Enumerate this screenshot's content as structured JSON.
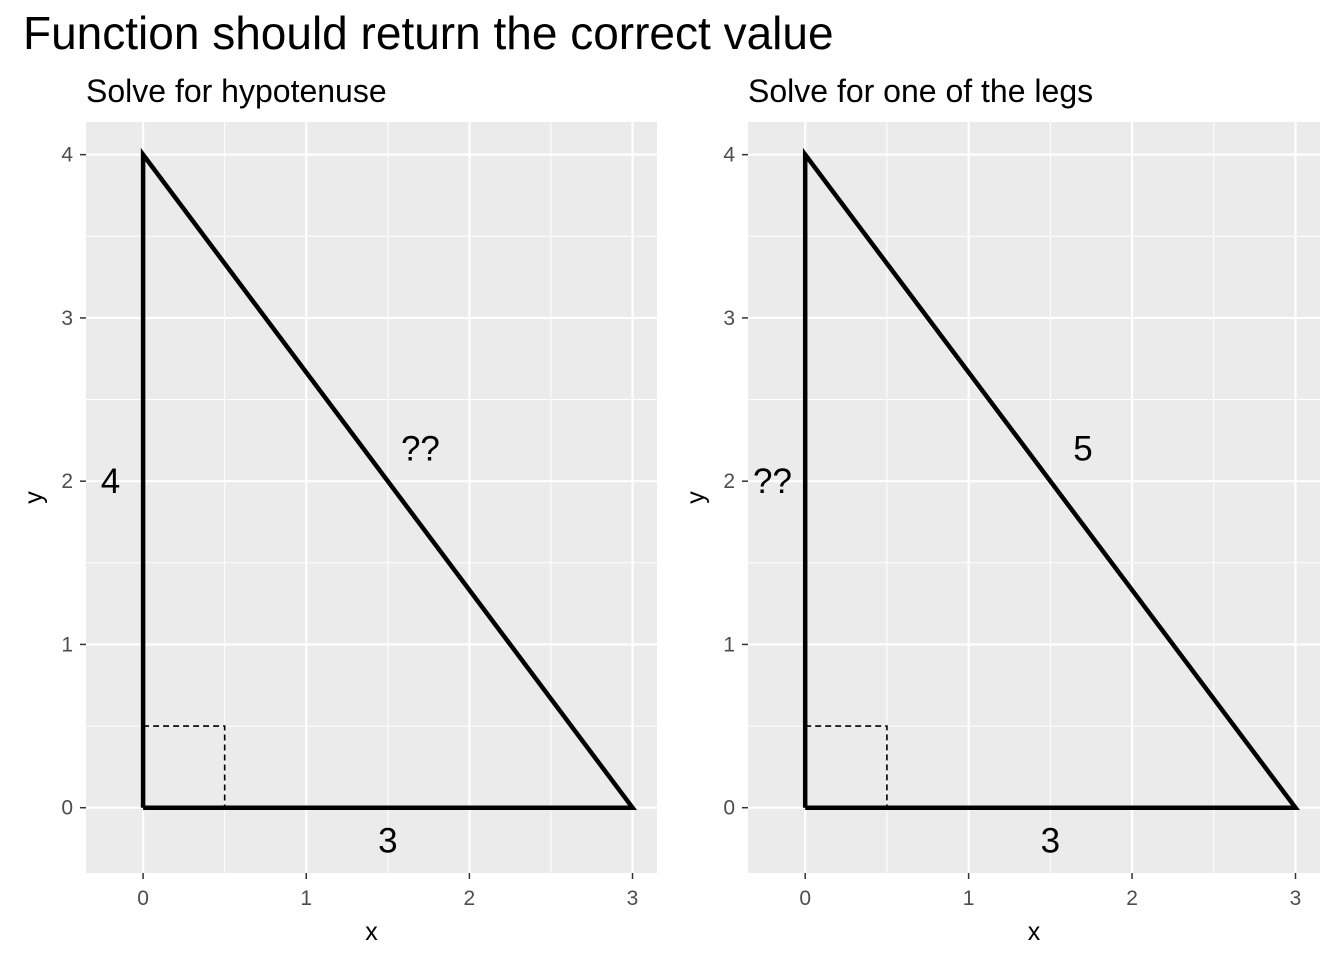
{
  "title": "Function should return the correct value",
  "chart_data": [
    {
      "type": "line",
      "subtitle": "Solve for hypotenuse",
      "xlabel": "x",
      "ylabel": "y",
      "xlim": [
        -0.35,
        3.15
      ],
      "ylim": [
        -0.4,
        4.2
      ],
      "x_ticks": [
        0,
        1,
        2,
        3
      ],
      "y_ticks": [
        0,
        1,
        2,
        3,
        4
      ],
      "grid": true,
      "triangle": [
        [
          0,
          0
        ],
        [
          3,
          0
        ],
        [
          0,
          4
        ],
        [
          0,
          0
        ]
      ],
      "right_angle_marker": [
        [
          0,
          0.5
        ],
        [
          0.5,
          0.5
        ],
        [
          0.5,
          0
        ]
      ],
      "side_labels": [
        {
          "text": "3",
          "x": 1.5,
          "y": -0.2
        },
        {
          "text": "4",
          "x": -0.2,
          "y": 2
        },
        {
          "text": "??",
          "x": 1.7,
          "y": 2.2
        }
      ]
    },
    {
      "type": "line",
      "subtitle": "Solve for one of the legs",
      "xlabel": "x",
      "ylabel": "y",
      "xlim": [
        -0.35,
        3.15
      ],
      "ylim": [
        -0.4,
        4.2
      ],
      "x_ticks": [
        0,
        1,
        2,
        3
      ],
      "y_ticks": [
        0,
        1,
        2,
        3,
        4
      ],
      "grid": true,
      "triangle": [
        [
          0,
          0
        ],
        [
          3,
          0
        ],
        [
          0,
          4
        ],
        [
          0,
          0
        ]
      ],
      "right_angle_marker": [
        [
          0,
          0.5
        ],
        [
          0.5,
          0.5
        ],
        [
          0.5,
          0
        ]
      ],
      "side_labels": [
        {
          "text": "3",
          "x": 1.5,
          "y": -0.2
        },
        {
          "text": "??",
          "x": -0.2,
          "y": 2
        },
        {
          "text": "5",
          "x": 1.7,
          "y": 2.2
        }
      ]
    }
  ]
}
